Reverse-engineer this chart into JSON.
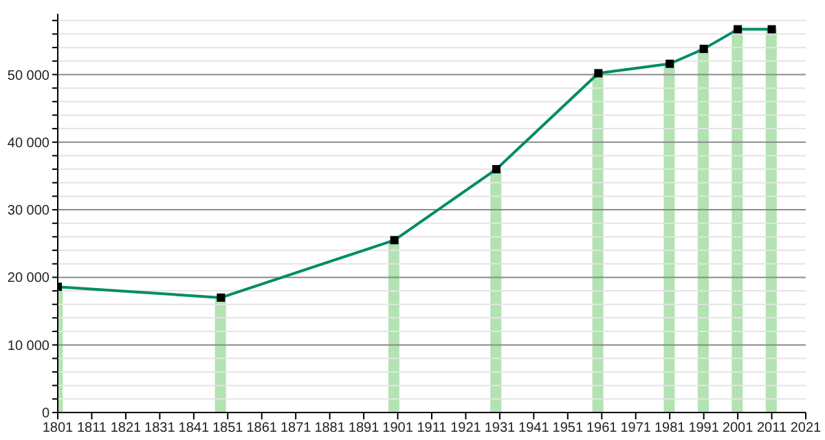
{
  "chart_data": {
    "type": "bar",
    "x": [
      1801,
      1849,
      1900,
      1930,
      1960,
      1981,
      1991,
      2001,
      2011
    ],
    "series": [
      {
        "color": "#b3e2b3",
        "values": [
          18600,
          17000,
          25500,
          36000,
          50200,
          51600,
          53800,
          56700,
          56700
        ]
      },
      {
        "type": "line",
        "color": "#008c64",
        "marker": "square",
        "values": [
          18600,
          17000,
          25500,
          36000,
          50200,
          51600,
          53800,
          56700,
          56700
        ]
      }
    ],
    "xlim": [
      1801,
      2021
    ],
    "xticks": [
      1801,
      1811,
      1821,
      1831,
      1841,
      1851,
      1861,
      1871,
      1881,
      1891,
      1901,
      1911,
      1921,
      1931,
      1941,
      1951,
      1961,
      1971,
      1981,
      1991,
      2001,
      2011,
      2021
    ],
    "ylim": [
      0,
      59000
    ],
    "yticks": [
      {
        "value": 0,
        "label": "0"
      },
      {
        "value": 2000,
        "label": null
      },
      {
        "value": 4000,
        "label": null
      },
      {
        "value": 6000,
        "label": null
      },
      {
        "value": 8000,
        "label": null
      },
      {
        "value": 10000,
        "label": "10 000"
      },
      {
        "value": 12000,
        "label": null
      },
      {
        "value": 14000,
        "label": null
      },
      {
        "value": 16000,
        "label": null
      },
      {
        "value": 18000,
        "label": null
      },
      {
        "value": 20000,
        "label": "20 000"
      },
      {
        "value": 22000,
        "label": null
      },
      {
        "value": 24000,
        "label": null
      },
      {
        "value": 26000,
        "label": null
      },
      {
        "value": 28000,
        "label": null
      },
      {
        "value": 30000,
        "label": "30 000"
      },
      {
        "value": 32000,
        "label": null
      },
      {
        "value": 34000,
        "label": null
      },
      {
        "value": 36000,
        "label": null
      },
      {
        "value": 38000,
        "label": null
      },
      {
        "value": 40000,
        "label": "40 000"
      },
      {
        "value": 42000,
        "label": null
      },
      {
        "value": 44000,
        "label": null
      },
      {
        "value": 46000,
        "label": null
      },
      {
        "value": 48000,
        "label": null
      },
      {
        "value": 50000,
        "label": "50 000"
      },
      {
        "value": 52000,
        "label": null
      },
      {
        "value": 54000,
        "label": null
      },
      {
        "value": 56000,
        "label": null
      },
      {
        "value": 58000,
        "label": null
      }
    ],
    "grid": true,
    "legend": false
  }
}
